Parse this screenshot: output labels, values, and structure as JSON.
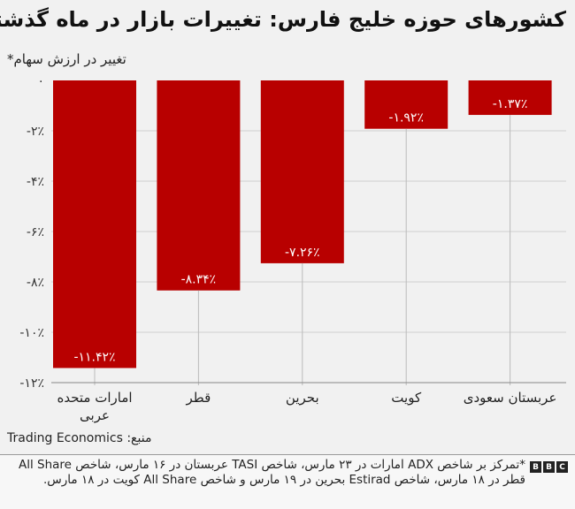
{
  "chart_data": {
    "type": "bar",
    "title": "کشورهای حوزه خلیج فارس: تغییرات بازار در ماه گذشته",
    "ylabel": "تغییر در ارزش سهام*",
    "xlabel": "",
    "categories": [
      "امارات متحده عربی",
      "قطر",
      "بحرین",
      "کویت",
      "عربستان سعودی"
    ],
    "values": [
      -11.42,
      -8.34,
      -7.26,
      -1.92,
      -1.37
    ],
    "data_labels": [
      "-۱۱.۴۲٪",
      "-۸.۳۴٪",
      "-۷.۲۶٪",
      "-۱.۹۲٪",
      "-۱.۳۷٪"
    ],
    "ylim": [
      -12,
      0
    ],
    "yticks": [
      0,
      -2,
      -4,
      -6,
      -8,
      -10,
      -12
    ],
    "ytick_labels": [
      "۰",
      "-۲٪",
      "-۴٪",
      "-۶٪",
      "-۸٪",
      "-۱۰٪",
      "-۱۲٪"
    ],
    "grid": true,
    "bar_color": "#b80000"
  },
  "source": "منبع: Trading Economics",
  "footnote": "*تمرکز بر شاخص ADX امارات در ۲۳ مارس، شاخص TASI عربستان در ۱۶ مارس، شاخص All Share قطر در ۱۸ مارس، شاخص Estirad بحرین در ۱۹ مارس و شاخص All Share کویت در ۱۸ مارس.",
  "logo": [
    "B",
    "B",
    "C"
  ]
}
